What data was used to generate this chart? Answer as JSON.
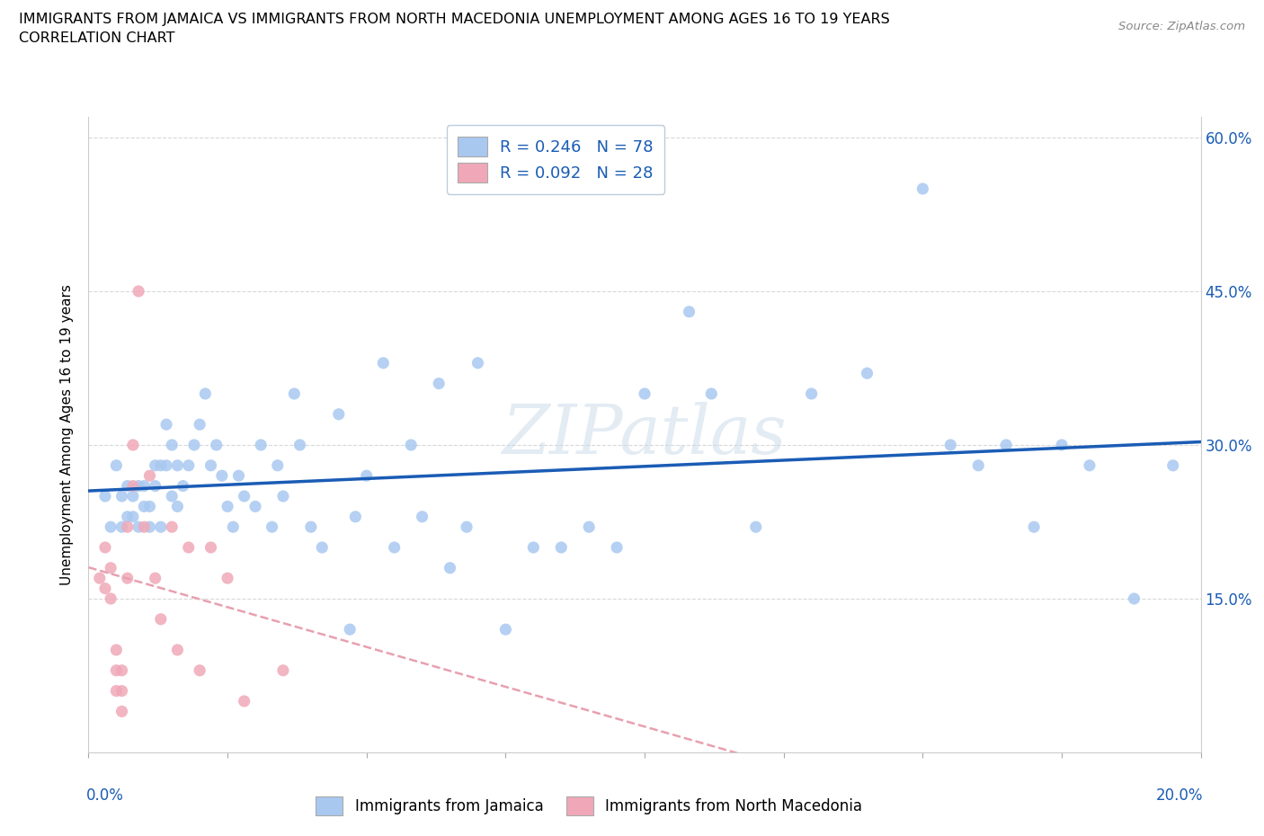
{
  "title_line1": "IMMIGRANTS FROM JAMAICA VS IMMIGRANTS FROM NORTH MACEDONIA UNEMPLOYMENT AMONG AGES 16 TO 19 YEARS",
  "title_line2": "CORRELATION CHART",
  "source_text": "Source: ZipAtlas.com",
  "ylabel_label": "Unemployment Among Ages 16 to 19 years",
  "jamaica_R": 0.246,
  "jamaica_N": 78,
  "macedonia_R": 0.092,
  "macedonia_N": 28,
  "jamaica_color": "#a8c8f0",
  "macedonia_color": "#f0a8b8",
  "jamaica_line_color": "#1a5cb5",
  "macedonia_line_color": "#e8a0b0",
  "legend_jamaica_label": "Immigrants from Jamaica",
  "legend_macedonia_label": "Immigrants from North Macedonia",
  "jamaica_scatter_x": [
    0.003,
    0.004,
    0.005,
    0.006,
    0.006,
    0.007,
    0.007,
    0.008,
    0.008,
    0.009,
    0.009,
    0.01,
    0.01,
    0.011,
    0.011,
    0.012,
    0.012,
    0.013,
    0.013,
    0.014,
    0.014,
    0.015,
    0.015,
    0.016,
    0.016,
    0.017,
    0.018,
    0.019,
    0.02,
    0.021,
    0.022,
    0.023,
    0.024,
    0.025,
    0.026,
    0.027,
    0.028,
    0.03,
    0.031,
    0.033,
    0.034,
    0.035,
    0.037,
    0.038,
    0.04,
    0.042,
    0.045,
    0.047,
    0.048,
    0.05,
    0.053,
    0.055,
    0.058,
    0.06,
    0.063,
    0.065,
    0.068,
    0.07,
    0.075,
    0.08,
    0.085,
    0.09,
    0.095,
    0.1,
    0.108,
    0.112,
    0.12,
    0.13,
    0.14,
    0.15,
    0.155,
    0.16,
    0.165,
    0.17,
    0.175,
    0.18,
    0.188,
    0.195
  ],
  "jamaica_scatter_y": [
    0.25,
    0.22,
    0.28,
    0.22,
    0.25,
    0.23,
    0.26,
    0.23,
    0.25,
    0.22,
    0.26,
    0.24,
    0.26,
    0.24,
    0.22,
    0.26,
    0.28,
    0.28,
    0.22,
    0.32,
    0.28,
    0.3,
    0.25,
    0.24,
    0.28,
    0.26,
    0.28,
    0.3,
    0.32,
    0.35,
    0.28,
    0.3,
    0.27,
    0.24,
    0.22,
    0.27,
    0.25,
    0.24,
    0.3,
    0.22,
    0.28,
    0.25,
    0.35,
    0.3,
    0.22,
    0.2,
    0.33,
    0.12,
    0.23,
    0.27,
    0.38,
    0.2,
    0.3,
    0.23,
    0.36,
    0.18,
    0.22,
    0.38,
    0.12,
    0.2,
    0.2,
    0.22,
    0.2,
    0.35,
    0.43,
    0.35,
    0.22,
    0.35,
    0.37,
    0.55,
    0.3,
    0.28,
    0.3,
    0.22,
    0.3,
    0.28,
    0.15,
    0.28
  ],
  "macedonia_scatter_x": [
    0.002,
    0.003,
    0.003,
    0.004,
    0.004,
    0.005,
    0.005,
    0.005,
    0.006,
    0.006,
    0.006,
    0.007,
    0.007,
    0.008,
    0.008,
    0.009,
    0.01,
    0.011,
    0.012,
    0.013,
    0.015,
    0.016,
    0.018,
    0.02,
    0.022,
    0.025,
    0.028,
    0.035
  ],
  "macedonia_scatter_y": [
    0.17,
    0.16,
    0.2,
    0.18,
    0.15,
    0.06,
    0.08,
    0.1,
    0.04,
    0.06,
    0.08,
    0.17,
    0.22,
    0.26,
    0.3,
    0.45,
    0.22,
    0.27,
    0.17,
    0.13,
    0.22,
    0.1,
    0.2,
    0.08,
    0.2,
    0.17,
    0.05,
    0.08
  ],
  "xlim": [
    0.0,
    0.2
  ],
  "ylim": [
    0.0,
    0.62
  ],
  "watermark": "ZIPatlas",
  "background_color": "#ffffff",
  "grid_color": "#d8d8d8"
}
